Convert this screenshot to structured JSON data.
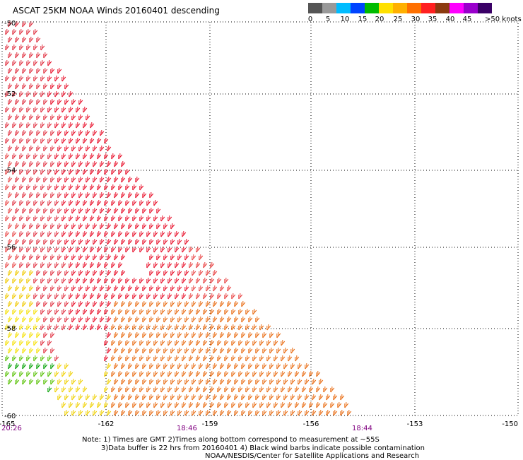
{
  "title": "ASCAT 25KM NOAA Winds 20160401 descending",
  "legend": {
    "colors": [
      "#555555",
      "#999999",
      "#00bcff",
      "#0044ff",
      "#00bb00",
      "#ffe000",
      "#ffb000",
      "#ff7000",
      "#ff2020",
      "#8b3a10",
      "#ff00ff",
      "#9900cc",
      "#3a0066"
    ],
    "labels": [
      "0",
      "5",
      "10",
      "15",
      "20",
      "25",
      "30",
      "35",
      "40",
      "45",
      ">50 knots"
    ]
  },
  "map": {
    "lon_labels": [
      "-165",
      "-162",
      "-159",
      "-156",
      "-153",
      "-150"
    ],
    "lat_labels": [
      "-50",
      "-52",
      "-54",
      "-56",
      "-58",
      "-60"
    ],
    "times": [
      "20:26",
      "18:46",
      "18:44"
    ]
  },
  "notes": {
    "line1": "Note: 1) Times are GMT 2)Times along bottom correspond to measurement at ~55S",
    "line2": "3)Data buffer is 22 hrs from 20160401 4) Black wind barbs indicate possible contamination",
    "line3": "NOAA/NESDIS/Center for Satellite Applications and Research"
  }
}
